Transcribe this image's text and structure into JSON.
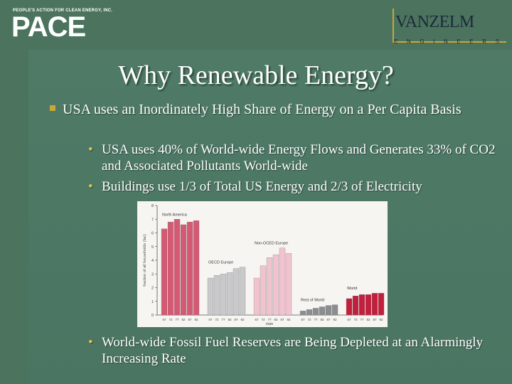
{
  "logos": {
    "pace_tagline": "PEOPLE'S ACTION FOR CLEAN ENERGY, INC.",
    "pace_word": "PACE",
    "vanzelm_name": "VANZELM",
    "vanzelm_sub": "ENGINEERS"
  },
  "slide": {
    "title": "Why Renewable Energy?",
    "bullets": [
      {
        "text": "USA uses an Inordinately High Share of Energy on a Per Capita Basis",
        "subbullets": [
          "USA uses 40% of World-wide Energy Flows and Generates 33% of CO2 and Associated Pollutants World-wide",
          "Buildings use 1/3 of Total US Energy and 2/3 of Electricity"
        ]
      }
    ],
    "final_subbullet": "World-wide Fossil Fuel Reserves are Being Depleted at an Alarmingly Increasing Rate"
  },
  "colors": {
    "background": "#4b735e",
    "bullet_gold": "#c9a53a",
    "text": "#ffffff"
  },
  "chart_data": {
    "type": "bar",
    "ylabel": "fraction of all households (fac)",
    "xlabel": "date",
    "ylim": [
      0,
      8
    ],
    "yticks": [
      0,
      1,
      2,
      3,
      4,
      5,
      6,
      7,
      8
    ],
    "categories": [
      "67",
      "72",
      "77",
      "82",
      "87",
      "92"
    ],
    "series": [
      {
        "name": "North America",
        "values": [
          6.3,
          6.8,
          7.0,
          6.6,
          6.8,
          6.9
        ]
      },
      {
        "name": "OECD Europe",
        "values": [
          2.7,
          2.9,
          3.0,
          3.1,
          3.4,
          3.5
        ]
      },
      {
        "name": "Non-OCED Europe",
        "values": [
          2.7,
          3.6,
          4.2,
          4.4,
          4.9,
          4.5
        ]
      },
      {
        "name": "Rest of World",
        "values": [
          0.3,
          0.4,
          0.5,
          0.6,
          0.7,
          0.75
        ]
      },
      {
        "name": "World",
        "values": [
          1.2,
          1.4,
          1.5,
          1.5,
          1.6,
          1.6
        ]
      }
    ],
    "series_colors": [
      "#d45a73",
      "#c9c9cc",
      "#f0c4cf",
      "#8a8e90",
      "#c21f3d"
    ]
  }
}
